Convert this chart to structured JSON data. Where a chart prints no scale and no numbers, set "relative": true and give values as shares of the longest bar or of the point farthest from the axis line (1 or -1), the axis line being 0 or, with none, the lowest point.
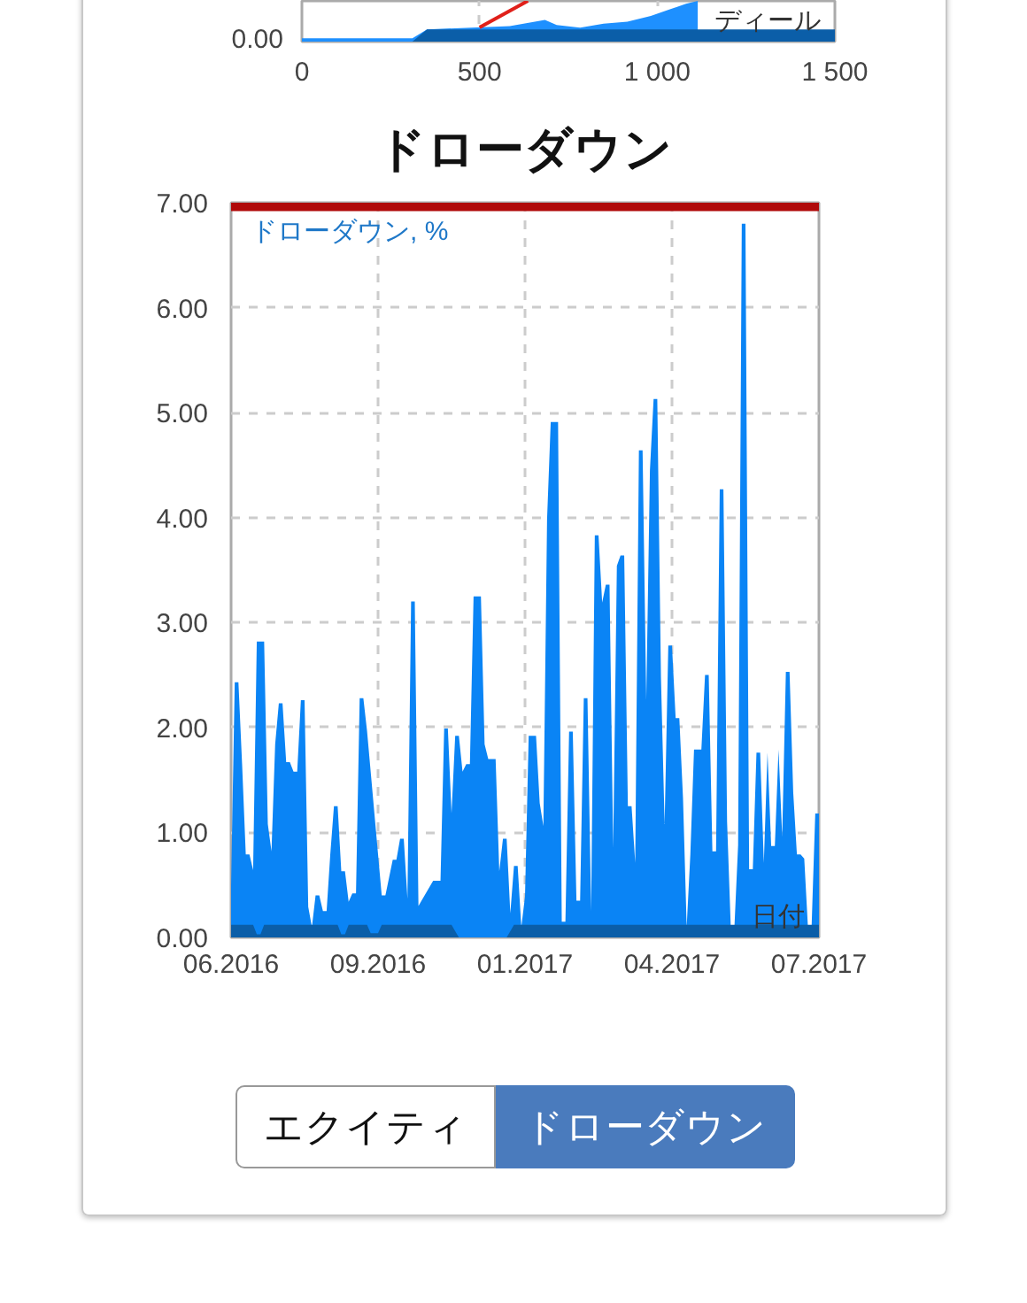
{
  "chart_data": [
    {
      "type": "area",
      "xlabel": "ディール",
      "relative": true,
      "annotations": [
        "0.00"
      ],
      "xlim": [
        0,
        1500
      ],
      "xticks": [
        0,
        500,
        {
          "value": 1000,
          "label": "1 000"
        },
        {
          "value": 1500,
          "label": "1 500"
        }
      ],
      "grid": "x",
      "series": [
        {
          "color": "#1e90ff",
          "x": [
            0,
            311,
            352,
            585,
            684,
            717,
            783,
            849,
            916,
            982,
            1032,
            1081,
            1114
          ],
          "values": [
            0.08,
            0.08,
            0.3,
            0.38,
            0.53,
            0.41,
            0.34,
            0.44,
            0.49,
            0.63,
            0.78,
            0.93,
            1.0
          ]
        },
        {
          "color": "#0b5ea8",
          "x": [
            311,
            352,
            1500
          ],
          "values": [
            0,
            0.3,
            0.3
          ]
        },
        {
          "type": "line",
          "color": "#e0201a",
          "x": [
            500,
            636
          ],
          "values": [
            0.35,
            1.0
          ]
        }
      ]
    },
    {
      "type": "area",
      "title": "ドローダウン",
      "ylabel": "ドローダウン, %",
      "xlabel": "日付",
      "categories": [
        "06.2016",
        null,
        null,
        null,
        null,
        null,
        null,
        null,
        null,
        null,
        null,
        null,
        null,
        null,
        null,
        null,
        null,
        null,
        null,
        null,
        null,
        null,
        null,
        null,
        null,
        null,
        null,
        null,
        null,
        null,
        null,
        null,
        null,
        null,
        null,
        null,
        null,
        null,
        null,
        null,
        "09.2016",
        null,
        null,
        null,
        null,
        null,
        null,
        null,
        null,
        null,
        null,
        null,
        null,
        null,
        null,
        null,
        null,
        null,
        null,
        null,
        null,
        null,
        null,
        null,
        null,
        null,
        null,
        null,
        null,
        null,
        null,
        null,
        null,
        null,
        null,
        null,
        null,
        null,
        null,
        null,
        "01.2017",
        null,
        null,
        null,
        null,
        null,
        null,
        null,
        null,
        null,
        null,
        null,
        null,
        null,
        null,
        null,
        null,
        null,
        null,
        null,
        null,
        null,
        null,
        null,
        null,
        null,
        null,
        null,
        null,
        null,
        null,
        null,
        null,
        null,
        null,
        null,
        null,
        null,
        null,
        null,
        "04.2017",
        null,
        null,
        null,
        null,
        null,
        null,
        null,
        null,
        null,
        null,
        null,
        null,
        null,
        null,
        null,
        null,
        null,
        null,
        null,
        null,
        null,
        null,
        null,
        null,
        null,
        null,
        null,
        null,
        null,
        null,
        null,
        null,
        null,
        null,
        null,
        null,
        null,
        null,
        null,
        "07.2017"
      ],
      "ylim": [
        0,
        7
      ],
      "yticks": [
        {
          "value": 0,
          "label": "0.00"
        },
        {
          "value": 1,
          "label": "1.00"
        },
        {
          "value": 2,
          "label": "2.00"
        },
        {
          "value": 3,
          "label": "3.00"
        },
        {
          "value": 4,
          "label": "4.00"
        },
        {
          "value": 5,
          "label": "5.00"
        },
        {
          "value": 6,
          "label": "6.00"
        },
        {
          "value": 7,
          "label": "7.00"
        }
      ],
      "grid": true,
      "bands": [
        {
          "axis": "y",
          "from": 6.92,
          "to": 7,
          "color": "#b00a0a"
        }
      ],
      "series": [
        {
          "color": "#0a84f5",
          "values": [
            0.49,
            2.43,
            2.43,
            1.65,
            0.79,
            0.79,
            0.64,
            2.82,
            2.82,
            2.82,
            1.08,
            0.82,
            1.84,
            2.23,
            2.23,
            1.67,
            1.67,
            1.58,
            1.58,
            2.26,
            2.26,
            0.29,
            0.1,
            0.4,
            0.4,
            0.25,
            0.25,
            0.79,
            1.25,
            1.25,
            0.63,
            0.63,
            0.34,
            0.42,
            0.42,
            2.28,
            2.28,
            1.97,
            null,
            null,
            null,
            0.4,
            0.4,
            0.57,
            0.74,
            0.74,
            0.94,
            0.94,
            0.37,
            3.2,
            3.2,
            0.3,
            null,
            null,
            null,
            0.54,
            0.54,
            0.54,
            1.99,
            1.99,
            1.18,
            1.92,
            1.92,
            1.58,
            1.65,
            1.65,
            3.25,
            3.25,
            3.25,
            1.84,
            1.7,
            1.7,
            1.7,
            0.63,
            0.94,
            0.94,
            0.23,
            0.68,
            0.68,
            0.1,
            0.39,
            1.92,
            1.92,
            1.92,
            1.28,
            1.06,
            3.98,
            4.91,
            4.91,
            4.91,
            0.15,
            0.15,
            1.96,
            1.96,
            0.35,
            0.35,
            2.28,
            2.28,
            0.25,
            3.83,
            3.83,
            3.19,
            3.36,
            3.36,
            0.85,
            3.54,
            3.64,
            3.64,
            1.25,
            1.25,
            0.71,
            4.64,
            4.64,
            2.26,
            4.45,
            5.13,
            5.13,
            2.48,
            1.08,
            2.78,
            2.78,
            2.09,
            2.09,
            1.33,
            0.1,
            0.79,
            1.79,
            1.79,
            1.79,
            2.5,
            2.5,
            0.82,
            0.82,
            4.27,
            4.27,
            1.1,
            0.1,
            0.1,
            0.88,
            6.8,
            6.8,
            0.65,
            0.65,
            1.76,
            1.76,
            0.71,
            1.76,
            0.87,
            0.87,
            1.79,
            0.96,
            2.53,
            2.53,
            1.38,
            0.79,
            0.79,
            0.75,
            0.1,
            0.1,
            1.18,
            1.18
          ]
        },
        {
          "color": "#0b5ea8",
          "values": [
            0.12,
            0.12,
            0.12,
            0.12,
            0.12,
            0.12,
            0.12,
            0.03,
            0.03,
            0.12,
            0.12,
            0.12,
            0.12,
            0.12,
            0.12,
            0.12,
            0.12,
            0.12,
            0.12,
            0.12,
            0.12,
            0.12,
            0.12,
            0.12,
            0.12,
            0.12,
            0.12,
            0.12,
            0.12,
            0.12,
            0.03,
            0.03,
            0.12,
            0.12,
            0.12,
            0.12,
            0.12,
            0.12,
            0.04,
            0.04,
            0.04,
            0.12,
            0.12,
            0.12,
            0.12,
            0.12,
            0.12,
            0.12,
            0.12,
            0.12,
            0.12,
            0.12,
            0.12,
            0.12,
            0.12,
            0.12,
            0.12,
            0.12,
            0.12,
            0.12,
            0.12,
            0.06,
            0,
            0,
            0,
            0,
            0,
            0,
            0,
            0,
            0,
            0,
            0,
            0,
            0,
            0,
            0.06,
            0.12,
            0.12,
            0.12,
            0.12,
            0.12,
            0.12,
            0.12,
            0.12,
            0.12,
            0.12,
            0.12,
            0.12,
            0.12,
            0.12,
            0.12,
            0.12,
            0.12,
            0.12,
            0.12,
            0.12,
            0.12,
            0.12,
            0.12,
            0.12,
            0.12,
            0.12,
            0.12,
            0.12,
            0.12,
            0.12,
            0.12,
            0.12,
            0.12,
            0.12,
            0.12,
            0.12,
            0.12,
            0.12,
            0.12,
            0.12,
            0.12,
            0.12,
            0.12,
            0.12,
            0.12,
            0.12,
            0.12,
            0.12,
            0.12,
            0.12,
            0.12,
            0.12,
            0.12,
            0.12,
            0.12,
            0.12,
            0.12,
            0.12,
            0.12,
            0.12,
            0.12,
            0.12,
            0.12,
            0.12,
            0.12,
            0.12,
            0.12,
            0.12,
            0.12,
            0.12,
            0.12,
            0.12,
            0.12,
            0.12,
            0.12,
            0.12,
            0.12,
            0.12,
            0.12,
            0.12,
            0.12,
            0.12,
            0.12,
            0.12
          ]
        }
      ]
    },
    {
      "type": "other",
      "categories": [
        "エクイティ",
        "ドローダウン"
      ],
      "colors": [
        "#ffffff",
        "#4a7bbd"
      ]
    }
  ]
}
